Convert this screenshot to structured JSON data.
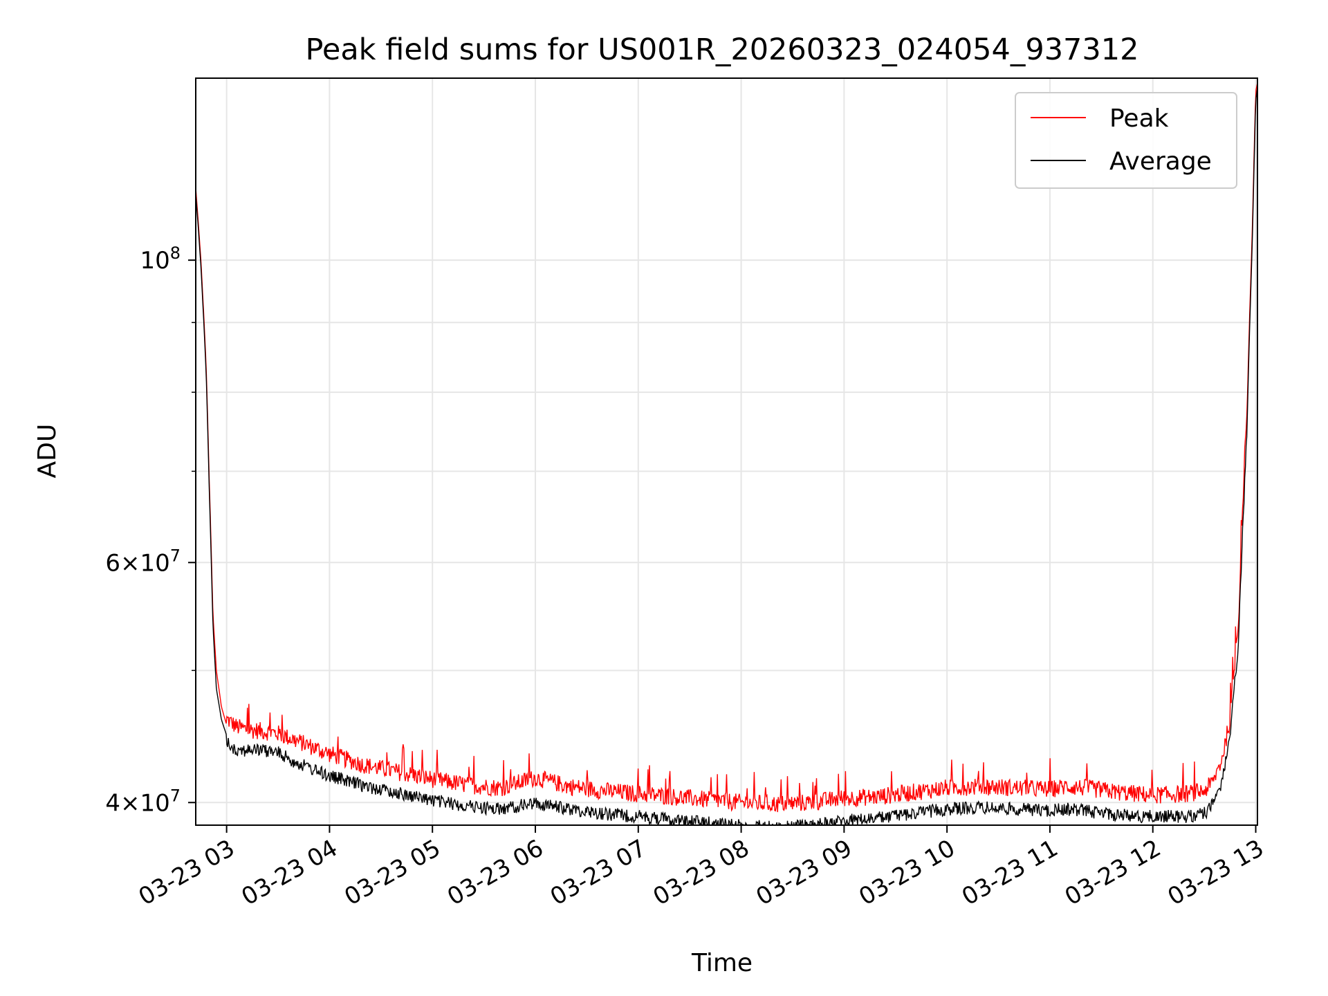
{
  "chart_data": {
    "type": "line",
    "title": "Peak field sums for US001R_20260323_024054_937312",
    "xlabel": "Time",
    "ylabel": "ADU",
    "y_scale": "log",
    "grid": true,
    "legend_position": "top-right",
    "xlim": [
      "2026-03-23 02:42",
      "2026-03-23 13:01"
    ],
    "ylim": [
      38500000,
      136000000
    ],
    "x_ticks": [
      {
        "value": "2026-03-23 03:00",
        "label": "03-23 03"
      },
      {
        "value": "2026-03-23 04:00",
        "label": "03-23 04"
      },
      {
        "value": "2026-03-23 05:00",
        "label": "03-23 05"
      },
      {
        "value": "2026-03-23 06:00",
        "label": "03-23 06"
      },
      {
        "value": "2026-03-23 07:00",
        "label": "03-23 07"
      },
      {
        "value": "2026-03-23 08:00",
        "label": "03-23 08"
      },
      {
        "value": "2026-03-23 09:00",
        "label": "03-23 09"
      },
      {
        "value": "2026-03-23 10:00",
        "label": "03-23 10"
      },
      {
        "value": "2026-03-23 11:00",
        "label": "03-23 11"
      },
      {
        "value": "2026-03-23 12:00",
        "label": "03-23 12"
      },
      {
        "value": "2026-03-23 13:00",
        "label": "03-23 13"
      }
    ],
    "y_ticks_major": [
      {
        "value": 40000000,
        "mantissa": "4",
        "exponent": "7"
      },
      {
        "value": 60000000,
        "mantissa": "6",
        "exponent": "7"
      },
      {
        "value": 100000000,
        "mantissa": "",
        "exponent": "8"
      }
    ],
    "y_ticks_minor": [
      50000000,
      70000000,
      80000000,
      90000000
    ],
    "series": [
      {
        "name": "Peak",
        "color": "#ff0000",
        "x": [
          "2026-03-23 02:42",
          "2026-03-23 02:45",
          "2026-03-23 02:48",
          "2026-03-23 02:50",
          "2026-03-23 02:52",
          "2026-03-23 02:54",
          "2026-03-23 02:57",
          "2026-03-23 03:00",
          "2026-03-23 03:06",
          "2026-03-23 03:12",
          "2026-03-23 03:20",
          "2026-03-23 03:30",
          "2026-03-23 03:40",
          "2026-03-23 04:00",
          "2026-03-23 04:20",
          "2026-03-23 04:40",
          "2026-03-23 05:00",
          "2026-03-23 05:20",
          "2026-03-23 05:40",
          "2026-03-23 06:00",
          "2026-03-23 06:10",
          "2026-03-23 06:20",
          "2026-03-23 06:40",
          "2026-03-23 07:00",
          "2026-03-23 07:20",
          "2026-03-23 07:40",
          "2026-03-23 08:00",
          "2026-03-23 08:20",
          "2026-03-23 08:40",
          "2026-03-23 09:00",
          "2026-03-23 09:20",
          "2026-03-23 09:40",
          "2026-03-23 10:00",
          "2026-03-23 10:20",
          "2026-03-23 10:40",
          "2026-03-23 11:00",
          "2026-03-23 11:10",
          "2026-03-23 11:20",
          "2026-03-23 11:40",
          "2026-03-23 12:00",
          "2026-03-23 12:20",
          "2026-03-23 12:30",
          "2026-03-23 12:35",
          "2026-03-23 12:40",
          "2026-03-23 12:45",
          "2026-03-23 12:50",
          "2026-03-23 12:55",
          "2026-03-23 12:58",
          "2026-03-23 13:00",
          "2026-03-23 13:01"
        ],
        "values": [
          113000000,
          100000000,
          84000000,
          68000000,
          55000000,
          50000000,
          47000000,
          45600000,
          45000000,
          44800000,
          44700000,
          44500000,
          44000000,
          43000000,
          42200000,
          41700000,
          41200000,
          40800000,
          40600000,
          41300000,
          41000000,
          40700000,
          40400000,
          40200000,
          40000000,
          39800000,
          39600000,
          39500000,
          39600000,
          39900000,
          40000000,
          40300000,
          40600000,
          40700000,
          40600000,
          40500000,
          40700000,
          40600000,
          40300000,
          40100000,
          40200000,
          40400000,
          41000000,
          42500000,
          45500000,
          54000000,
          78000000,
          105000000,
          133000000,
          135000000
        ]
      },
      {
        "name": "Average",
        "color": "#000000",
        "x": [
          "2026-03-23 02:42",
          "2026-03-23 02:45",
          "2026-03-23 02:48",
          "2026-03-23 02:50",
          "2026-03-23 02:52",
          "2026-03-23 02:54",
          "2026-03-23 02:57",
          "2026-03-23 03:00",
          "2026-03-23 03:06",
          "2026-03-23 03:12",
          "2026-03-23 03:20",
          "2026-03-23 03:30",
          "2026-03-23 03:40",
          "2026-03-23 04:00",
          "2026-03-23 04:20",
          "2026-03-23 04:40",
          "2026-03-23 05:00",
          "2026-03-23 05:20",
          "2026-03-23 05:40",
          "2026-03-23 06:00",
          "2026-03-23 06:10",
          "2026-03-23 06:20",
          "2026-03-23 06:40",
          "2026-03-23 07:00",
          "2026-03-23 07:20",
          "2026-03-23 07:40",
          "2026-03-23 08:00",
          "2026-03-23 08:20",
          "2026-03-23 08:40",
          "2026-03-23 09:00",
          "2026-03-23 09:20",
          "2026-03-23 09:40",
          "2026-03-23 10:00",
          "2026-03-23 10:20",
          "2026-03-23 10:40",
          "2026-03-23 11:00",
          "2026-03-23 11:10",
          "2026-03-23 11:20",
          "2026-03-23 11:40",
          "2026-03-23 12:00",
          "2026-03-23 12:20",
          "2026-03-23 12:30",
          "2026-03-23 12:35",
          "2026-03-23 12:40",
          "2026-03-23 12:45",
          "2026-03-23 12:50",
          "2026-03-23 12:55",
          "2026-03-23 12:58",
          "2026-03-23 13:00",
          "2026-03-23 13:01"
        ],
        "values": [
          112000000,
          99000000,
          83000000,
          67000000,
          54000000,
          48500000,
          46000000,
          44800000,
          44200000,
          44200000,
          44200000,
          44000000,
          43300000,
          42300000,
          41600000,
          41100000,
          40600000,
          40200000,
          40000000,
          40400000,
          40200000,
          40000000,
          39700000,
          39500000,
          39300000,
          39100000,
          38900000,
          38800000,
          38900000,
          39200000,
          39400000,
          39700000,
          40000000,
          40100000,
          40000000,
          39900000,
          40000000,
          39900000,
          39600000,
          39500000,
          39500000,
          39700000,
          40300000,
          41800000,
          45000000,
          53000000,
          76000000,
          103000000,
          131000000,
          134000000
        ]
      }
    ]
  }
}
